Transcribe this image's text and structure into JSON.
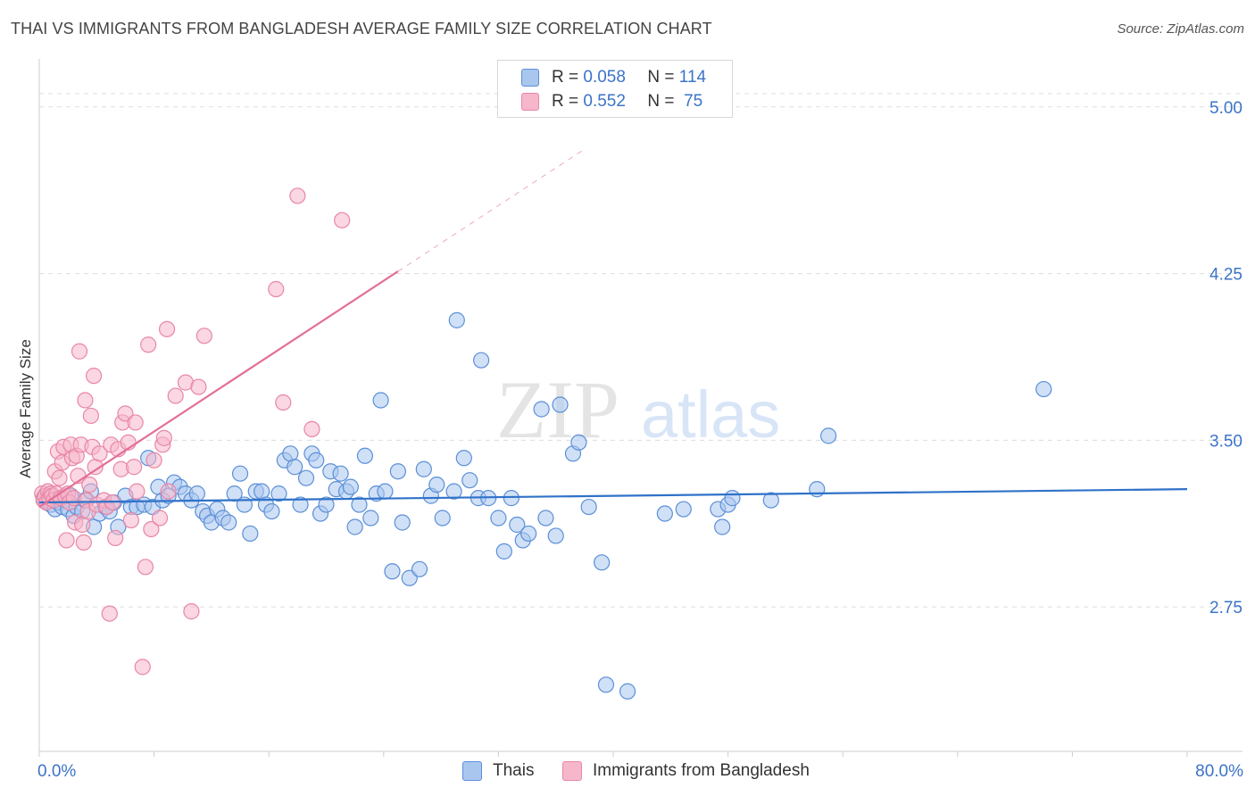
{
  "header": {
    "title": "THAI VS IMMIGRANTS FROM BANGLADESH AVERAGE FAMILY SIZE CORRELATION CHART",
    "source": "Source: ZipAtlas.com"
  },
  "watermark": {
    "zip": "ZIP",
    "atlas": "atlas"
  },
  "legend": {
    "rows": [
      {
        "r_label": "R =",
        "r_value": "0.058",
        "n_label": "N =",
        "n_value": "114",
        "color": "#a9c6ee"
      },
      {
        "r_label": "R =",
        "r_value": "0.552",
        "n_label": "N =",
        "n_value": "75",
        "color": "#f6b7ca"
      }
    ]
  },
  "bottom_legend": {
    "thais": "Thais",
    "bangladesh": "Immigrants from Bangladesh"
  },
  "colors": {
    "thai_fill": "#a9c6ee",
    "thai_stroke": "#5b8fd8",
    "thai_line": "#2f72c9",
    "bang_fill": "#f6b7ca",
    "bang_stroke": "#e986a6",
    "bang_line": "#e36f97",
    "axis_text": "#3b73c8",
    "grid": "#dddddd"
  },
  "chart_data": {
    "type": "scatter",
    "title": "THAI VS IMMIGRANTS FROM BANGLADESH AVERAGE FAMILY SIZE CORRELATION CHART",
    "xlabel": "",
    "ylabel": "Average Family Size",
    "xlim": [
      0,
      80
    ],
    "ylim": [
      2.1,
      5.2
    ],
    "x_tick_labels": [
      "0.0%",
      "80.0%"
    ],
    "y_ticks": [
      2.75,
      3.5,
      4.25,
      5.0
    ],
    "y_tick_labels": [
      "2.75",
      "3.50",
      "4.25",
      "5.00"
    ],
    "grid": true,
    "legend_position": "top-center",
    "series": [
      {
        "name": "Thais",
        "R": 0.058,
        "N": 114,
        "trend": {
          "x": [
            0,
            80
          ],
          "y": [
            3.22,
            3.28
          ]
        },
        "points": [
          [
            0.3,
            3.24
          ],
          [
            0.5,
            3.22
          ],
          [
            0.6,
            3.25
          ],
          [
            0.8,
            3.21
          ],
          [
            1.0,
            3.23
          ],
          [
            1.1,
            3.19
          ],
          [
            1.3,
            3.22
          ],
          [
            1.5,
            3.24
          ],
          [
            1.6,
            3.2
          ],
          [
            1.8,
            3.23
          ],
          [
            2.0,
            3.19
          ],
          [
            2.2,
            3.25
          ],
          [
            2.4,
            3.16
          ],
          [
            2.6,
            3.2
          ],
          [
            3.0,
            3.18
          ],
          [
            3.2,
            3.23
          ],
          [
            3.6,
            3.27
          ],
          [
            3.8,
            3.11
          ],
          [
            4.2,
            3.17
          ],
          [
            4.6,
            3.2
          ],
          [
            4.9,
            3.18
          ],
          [
            5.2,
            3.22
          ],
          [
            5.5,
            3.11
          ],
          [
            6.0,
            3.25
          ],
          [
            6.4,
            3.2
          ],
          [
            6.8,
            3.2
          ],
          [
            7.3,
            3.21
          ],
          [
            7.6,
            3.42
          ],
          [
            7.9,
            3.2
          ],
          [
            8.3,
            3.29
          ],
          [
            8.6,
            3.23
          ],
          [
            9.0,
            3.25
          ],
          [
            9.4,
            3.31
          ],
          [
            9.8,
            3.29
          ],
          [
            10.2,
            3.26
          ],
          [
            10.6,
            3.23
          ],
          [
            11.0,
            3.26
          ],
          [
            11.4,
            3.18
          ],
          [
            11.7,
            3.16
          ],
          [
            12.0,
            3.13
          ],
          [
            12.4,
            3.19
          ],
          [
            12.8,
            3.15
          ],
          [
            13.2,
            3.13
          ],
          [
            13.6,
            3.26
          ],
          [
            14.0,
            3.35
          ],
          [
            14.3,
            3.21
          ],
          [
            14.7,
            3.08
          ],
          [
            15.1,
            3.27
          ],
          [
            15.5,
            3.27
          ],
          [
            15.8,
            3.21
          ],
          [
            16.2,
            3.18
          ],
          [
            16.7,
            3.26
          ],
          [
            17.1,
            3.41
          ],
          [
            17.5,
            3.44
          ],
          [
            17.8,
            3.38
          ],
          [
            18.2,
            3.21
          ],
          [
            18.6,
            3.33
          ],
          [
            19.0,
            3.44
          ],
          [
            19.3,
            3.41
          ],
          [
            19.6,
            3.17
          ],
          [
            20.0,
            3.21
          ],
          [
            20.3,
            3.36
          ],
          [
            20.7,
            3.28
          ],
          [
            21.0,
            3.35
          ],
          [
            21.4,
            3.27
          ],
          [
            21.7,
            3.29
          ],
          [
            22.0,
            3.11
          ],
          [
            22.3,
            3.21
          ],
          [
            22.7,
            3.43
          ],
          [
            23.1,
            3.15
          ],
          [
            23.5,
            3.26
          ],
          [
            23.8,
            3.68
          ],
          [
            24.1,
            3.27
          ],
          [
            24.6,
            2.91
          ],
          [
            25.0,
            3.36
          ],
          [
            25.3,
            3.13
          ],
          [
            25.8,
            2.88
          ],
          [
            26.5,
            2.92
          ],
          [
            26.8,
            3.37
          ],
          [
            27.3,
            3.25
          ],
          [
            27.7,
            3.3
          ],
          [
            28.1,
            3.15
          ],
          [
            28.9,
            3.27
          ],
          [
            29.1,
            4.04
          ],
          [
            29.6,
            3.42
          ],
          [
            30.0,
            3.32
          ],
          [
            30.6,
            3.24
          ],
          [
            30.8,
            3.86
          ],
          [
            31.3,
            3.24
          ],
          [
            32.0,
            3.15
          ],
          [
            32.4,
            3.0
          ],
          [
            32.9,
            3.24
          ],
          [
            33.3,
            3.12
          ],
          [
            33.7,
            3.05
          ],
          [
            34.1,
            3.08
          ],
          [
            35.0,
            3.64
          ],
          [
            35.3,
            3.15
          ],
          [
            36.0,
            3.07
          ],
          [
            36.3,
            3.66
          ],
          [
            37.2,
            3.44
          ],
          [
            37.6,
            3.49
          ],
          [
            38.3,
            3.2
          ],
          [
            39.2,
            2.95
          ],
          [
            39.5,
            2.4
          ],
          [
            41.0,
            2.37
          ],
          [
            43.6,
            3.17
          ],
          [
            44.9,
            3.19
          ],
          [
            47.3,
            3.19
          ],
          [
            47.6,
            3.11
          ],
          [
            48.0,
            3.21
          ],
          [
            48.3,
            3.24
          ],
          [
            51.0,
            3.23
          ],
          [
            54.2,
            3.28
          ],
          [
            55.0,
            3.52
          ],
          [
            70.0,
            3.73
          ]
        ]
      },
      {
        "name": "Immigrants from Bangladesh",
        "R": 0.552,
        "N": 75,
        "trend": {
          "x": [
            0,
            25
          ],
          "y": [
            3.2,
            4.26
          ]
        },
        "trend_extension": {
          "x": [
            25,
            38
          ],
          "y": [
            4.26,
            4.81
          ]
        },
        "points": [
          [
            0.2,
            3.26
          ],
          [
            0.3,
            3.23
          ],
          [
            0.4,
            3.25
          ],
          [
            0.5,
            3.22
          ],
          [
            0.6,
            3.27
          ],
          [
            0.7,
            3.24
          ],
          [
            0.8,
            3.26
          ],
          [
            0.9,
            3.25
          ],
          [
            1.0,
            3.23
          ],
          [
            1.1,
            3.36
          ],
          [
            1.2,
            3.26
          ],
          [
            1.3,
            3.45
          ],
          [
            1.4,
            3.33
          ],
          [
            1.5,
            3.24
          ],
          [
            1.6,
            3.4
          ],
          [
            1.7,
            3.47
          ],
          [
            1.8,
            3.25
          ],
          [
            1.9,
            3.05
          ],
          [
            2.0,
            3.26
          ],
          [
            2.1,
            3.22
          ],
          [
            2.2,
            3.48
          ],
          [
            2.3,
            3.42
          ],
          [
            2.4,
            3.24
          ],
          [
            2.5,
            3.13
          ],
          [
            2.6,
            3.43
          ],
          [
            2.7,
            3.34
          ],
          [
            2.8,
            3.9
          ],
          [
            2.9,
            3.48
          ],
          [
            3.0,
            3.12
          ],
          [
            3.1,
            3.04
          ],
          [
            3.2,
            3.68
          ],
          [
            3.3,
            3.23
          ],
          [
            3.4,
            3.18
          ],
          [
            3.5,
            3.3
          ],
          [
            3.6,
            3.61
          ],
          [
            3.7,
            3.47
          ],
          [
            3.8,
            3.79
          ],
          [
            3.9,
            3.38
          ],
          [
            4.0,
            3.21
          ],
          [
            4.2,
            3.44
          ],
          [
            4.5,
            3.23
          ],
          [
            4.7,
            3.2
          ],
          [
            4.9,
            2.72
          ],
          [
            5.0,
            3.48
          ],
          [
            5.1,
            3.22
          ],
          [
            5.3,
            3.06
          ],
          [
            5.5,
            3.46
          ],
          [
            5.7,
            3.37
          ],
          [
            5.8,
            3.58
          ],
          [
            6.0,
            3.62
          ],
          [
            6.2,
            3.49
          ],
          [
            6.4,
            3.14
          ],
          [
            6.6,
            3.38
          ],
          [
            6.7,
            3.58
          ],
          [
            6.8,
            3.27
          ],
          [
            7.2,
            2.48
          ],
          [
            7.4,
            2.93
          ],
          [
            7.6,
            3.93
          ],
          [
            7.8,
            3.1
          ],
          [
            8.0,
            3.41
          ],
          [
            8.4,
            3.15
          ],
          [
            8.6,
            3.48
          ],
          [
            8.7,
            3.51
          ],
          [
            8.9,
            4.0
          ],
          [
            9.0,
            3.27
          ],
          [
            9.5,
            3.7
          ],
          [
            10.2,
            3.76
          ],
          [
            10.6,
            2.73
          ],
          [
            11.1,
            3.74
          ],
          [
            11.5,
            3.97
          ],
          [
            16.5,
            4.18
          ],
          [
            17.0,
            3.67
          ],
          [
            18.0,
            4.6
          ],
          [
            19.0,
            3.55
          ],
          [
            21.1,
            4.49
          ]
        ]
      }
    ]
  }
}
